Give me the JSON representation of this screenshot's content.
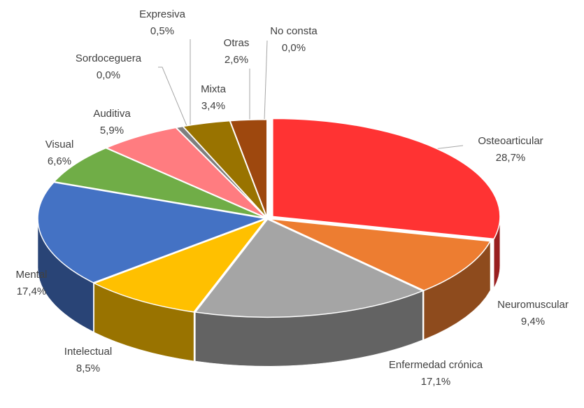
{
  "chart_data": {
    "type": "pie3d",
    "categories": [
      "Osteoarticular",
      "Neuromuscular",
      "Enfermedad crónica",
      "Intelectual",
      "Mental",
      "Visual",
      "Auditiva",
      "Sordoceguera",
      "Expresiva",
      "Mixta",
      "Otras",
      "No consta"
    ],
    "values": [
      28.7,
      9.4,
      17.1,
      8.5,
      17.4,
      6.6,
      5.9,
      0.0,
      0.5,
      3.4,
      2.6,
      0.0
    ],
    "value_labels": [
      "28,7%",
      "9,4%",
      "17,1%",
      "8,5%",
      "17,4%",
      "6,6%",
      "5,9%",
      "0,0%",
      "0,5%",
      "3,4%",
      "2,6%",
      "0,0%"
    ],
    "colors": [
      "#ff3333",
      "#ed7d31",
      "#a5a5a5",
      "#ffc000",
      "#4472c4",
      "#70ad47",
      "#ff7c80",
      "#8080a0",
      "#7f7f7f",
      "#997300",
      "#9e480e",
      "#636363"
    ]
  }
}
